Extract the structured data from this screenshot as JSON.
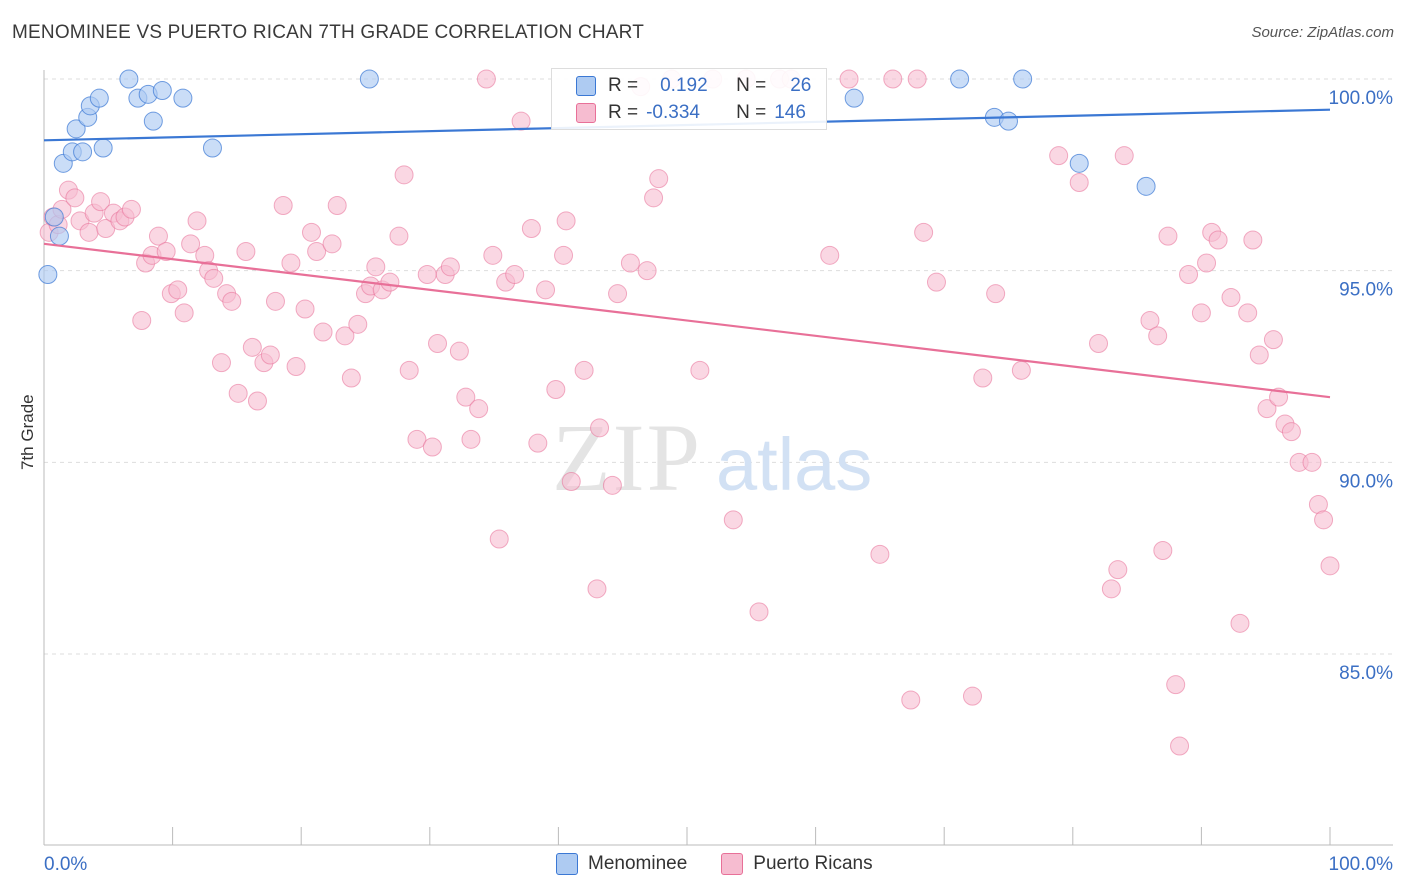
{
  "title": "MENOMINEE VS PUERTO RICAN 7TH GRADE CORRELATION CHART",
  "source": "Source: ZipAtlas.com",
  "watermark": {
    "zip": "ZIP",
    "atlas": "atlas"
  },
  "legend_top": {
    "row1": {
      "r_label": "R =",
      "r_value": "0.192",
      "n_label": "N =",
      "n_value": "26"
    },
    "row2": {
      "r_label": "R =",
      "r_value": "-0.334",
      "n_label": "N =",
      "n_value": "146"
    }
  },
  "colors": {
    "blue": "#3b78d4",
    "blue_fill": "#aecbf2",
    "pink": "#e87098",
    "pink_fill": "#f6bcd0",
    "axis_text": "#3b6fc4"
  },
  "chart_data": {
    "type": "scatter",
    "title": "MENOMINEE VS PUERTO RICAN 7TH GRADE CORRELATION CHART",
    "xlabel": "",
    "ylabel": "7th Grade",
    "xlim": [
      0,
      100
    ],
    "ylim": [
      80.5,
      100.8
    ],
    "x_tick_labels": [
      "0.0%",
      "100.0%"
    ],
    "y_ticks": [
      85,
      90,
      95,
      100
    ],
    "y_tick_labels": [
      "85.0%",
      "90.0%",
      "95.0%",
      "100.0%"
    ],
    "grid": true,
    "legend": "bottom-center",
    "series": [
      {
        "name": "Menominee",
        "color": "#3b78d4",
        "trend": {
          "x": [
            0,
            100
          ],
          "y": [
            98.4,
            99.2
          ]
        },
        "points": [
          {
            "x": 0.3,
            "y": 94.9
          },
          {
            "x": 0.8,
            "y": 96.4
          },
          {
            "x": 1.2,
            "y": 95.9
          },
          {
            "x": 1.5,
            "y": 97.8
          },
          {
            "x": 2.2,
            "y": 98.1
          },
          {
            "x": 2.5,
            "y": 98.7
          },
          {
            "x": 3.0,
            "y": 98.1
          },
          {
            "x": 3.4,
            "y": 99.0
          },
          {
            "x": 3.6,
            "y": 99.3
          },
          {
            "x": 4.3,
            "y": 99.5
          },
          {
            "x": 4.6,
            "y": 98.2
          },
          {
            "x": 6.6,
            "y": 100.0
          },
          {
            "x": 7.3,
            "y": 99.5
          },
          {
            "x": 8.1,
            "y": 99.6
          },
          {
            "x": 8.5,
            "y": 98.9
          },
          {
            "x": 9.2,
            "y": 99.7
          },
          {
            "x": 10.8,
            "y": 99.5
          },
          {
            "x": 13.1,
            "y": 98.2
          },
          {
            "x": 25.3,
            "y": 100.0
          },
          {
            "x": 63.0,
            "y": 99.5
          },
          {
            "x": 71.2,
            "y": 100.0
          },
          {
            "x": 73.9,
            "y": 99.0
          },
          {
            "x": 75.0,
            "y": 98.9
          },
          {
            "x": 76.1,
            "y": 100.0
          },
          {
            "x": 80.5,
            "y": 97.8
          },
          {
            "x": 85.7,
            "y": 97.2
          }
        ]
      },
      {
        "name": "Puerto Ricans",
        "color": "#e87098",
        "trend": {
          "x": [
            0,
            100
          ],
          "y": [
            95.7,
            91.7
          ]
        },
        "points": [
          {
            "x": 0.4,
            "y": 96.0
          },
          {
            "x": 0.7,
            "y": 96.4
          },
          {
            "x": 1.1,
            "y": 96.2
          },
          {
            "x": 1.4,
            "y": 96.6
          },
          {
            "x": 1.9,
            "y": 97.1
          },
          {
            "x": 2.4,
            "y": 96.9
          },
          {
            "x": 2.8,
            "y": 96.3
          },
          {
            "x": 3.5,
            "y": 96.0
          },
          {
            "x": 3.9,
            "y": 96.5
          },
          {
            "x": 4.4,
            "y": 96.8
          },
          {
            "x": 4.8,
            "y": 96.1
          },
          {
            "x": 5.4,
            "y": 96.5
          },
          {
            "x": 5.9,
            "y": 96.3
          },
          {
            "x": 6.3,
            "y": 96.4
          },
          {
            "x": 6.8,
            "y": 96.6
          },
          {
            "x": 7.6,
            "y": 93.7
          },
          {
            "x": 7.9,
            "y": 95.2
          },
          {
            "x": 8.4,
            "y": 95.4
          },
          {
            "x": 8.9,
            "y": 95.9
          },
          {
            "x": 9.5,
            "y": 95.5
          },
          {
            "x": 9.9,
            "y": 94.4
          },
          {
            "x": 10.4,
            "y": 94.5
          },
          {
            "x": 10.9,
            "y": 93.9
          },
          {
            "x": 11.4,
            "y": 95.7
          },
          {
            "x": 11.9,
            "y": 96.3
          },
          {
            "x": 12.5,
            "y": 95.4
          },
          {
            "x": 12.8,
            "y": 95.0
          },
          {
            "x": 13.2,
            "y": 94.8
          },
          {
            "x": 13.8,
            "y": 92.6
          },
          {
            "x": 14.2,
            "y": 94.4
          },
          {
            "x": 14.6,
            "y": 94.2
          },
          {
            "x": 15.1,
            "y": 91.8
          },
          {
            "x": 15.7,
            "y": 95.5
          },
          {
            "x": 16.2,
            "y": 93.0
          },
          {
            "x": 16.6,
            "y": 91.6
          },
          {
            "x": 17.1,
            "y": 92.6
          },
          {
            "x": 17.6,
            "y": 92.8
          },
          {
            "x": 18.0,
            "y": 94.2
          },
          {
            "x": 18.6,
            "y": 96.7
          },
          {
            "x": 19.2,
            "y": 95.2
          },
          {
            "x": 19.6,
            "y": 92.5
          },
          {
            "x": 20.3,
            "y": 94.0
          },
          {
            "x": 20.8,
            "y": 96.0
          },
          {
            "x": 21.2,
            "y": 95.5
          },
          {
            "x": 21.7,
            "y": 93.4
          },
          {
            "x": 22.4,
            "y": 95.7
          },
          {
            "x": 22.8,
            "y": 96.7
          },
          {
            "x": 23.4,
            "y": 93.3
          },
          {
            "x": 23.9,
            "y": 92.2
          },
          {
            "x": 24.4,
            "y": 93.6
          },
          {
            "x": 25.0,
            "y": 94.4
          },
          {
            "x": 25.4,
            "y": 94.6
          },
          {
            "x": 25.8,
            "y": 95.1
          },
          {
            "x": 26.3,
            "y": 94.5
          },
          {
            "x": 26.9,
            "y": 94.7
          },
          {
            "x": 27.6,
            "y": 95.9
          },
          {
            "x": 28.0,
            "y": 97.5
          },
          {
            "x": 28.4,
            "y": 92.4
          },
          {
            "x": 29.0,
            "y": 90.6
          },
          {
            "x": 29.8,
            "y": 94.9
          },
          {
            "x": 30.2,
            "y": 90.4
          },
          {
            "x": 30.6,
            "y": 93.1
          },
          {
            "x": 31.2,
            "y": 94.9
          },
          {
            "x": 31.6,
            "y": 95.1
          },
          {
            "x": 32.3,
            "y": 92.9
          },
          {
            "x": 32.8,
            "y": 91.7
          },
          {
            "x": 33.2,
            "y": 90.6
          },
          {
            "x": 33.8,
            "y": 91.4
          },
          {
            "x": 34.4,
            "y": 100.0
          },
          {
            "x": 34.9,
            "y": 95.4
          },
          {
            "x": 35.4,
            "y": 88.0
          },
          {
            "x": 35.9,
            "y": 94.7
          },
          {
            "x": 36.6,
            "y": 94.9
          },
          {
            "x": 37.1,
            "y": 98.9
          },
          {
            "x": 37.9,
            "y": 96.1
          },
          {
            "x": 38.4,
            "y": 90.5
          },
          {
            "x": 39.0,
            "y": 94.5
          },
          {
            "x": 39.8,
            "y": 91.9
          },
          {
            "x": 40.4,
            "y": 95.4
          },
          {
            "x": 40.6,
            "y": 96.3
          },
          {
            "x": 41.0,
            "y": 89.5
          },
          {
            "x": 42.0,
            "y": 92.4
          },
          {
            "x": 43.0,
            "y": 86.7
          },
          {
            "x": 43.2,
            "y": 90.9
          },
          {
            "x": 44.2,
            "y": 89.4
          },
          {
            "x": 44.6,
            "y": 94.4
          },
          {
            "x": 45.6,
            "y": 95.2
          },
          {
            "x": 46.4,
            "y": 99.8
          },
          {
            "x": 46.9,
            "y": 95.0
          },
          {
            "x": 47.4,
            "y": 96.9
          },
          {
            "x": 47.8,
            "y": 97.4
          },
          {
            "x": 48.8,
            "y": 100.0
          },
          {
            "x": 51.0,
            "y": 92.4
          },
          {
            "x": 52.0,
            "y": 100.0
          },
          {
            "x": 53.6,
            "y": 88.5
          },
          {
            "x": 54.6,
            "y": 100.0
          },
          {
            "x": 55.6,
            "y": 86.1
          },
          {
            "x": 57.2,
            "y": 100.0
          },
          {
            "x": 58.1,
            "y": 100.0
          },
          {
            "x": 61.1,
            "y": 95.4
          },
          {
            "x": 62.6,
            "y": 100.0
          },
          {
            "x": 65.0,
            "y": 87.6
          },
          {
            "x": 66.0,
            "y": 100.0
          },
          {
            "x": 67.4,
            "y": 83.8
          },
          {
            "x": 67.9,
            "y": 100.0
          },
          {
            "x": 68.4,
            "y": 96.0
          },
          {
            "x": 69.4,
            "y": 94.7
          },
          {
            "x": 72.2,
            "y": 83.9
          },
          {
            "x": 73.0,
            "y": 92.2
          },
          {
            "x": 74.0,
            "y": 94.4
          },
          {
            "x": 76.0,
            "y": 92.4
          },
          {
            "x": 78.9,
            "y": 98.0
          },
          {
            "x": 80.5,
            "y": 97.3
          },
          {
            "x": 82.0,
            "y": 93.1
          },
          {
            "x": 83.0,
            "y": 86.7
          },
          {
            "x": 83.5,
            "y": 87.2
          },
          {
            "x": 84.0,
            "y": 98.0
          },
          {
            "x": 86.0,
            "y": 93.7
          },
          {
            "x": 86.6,
            "y": 93.3
          },
          {
            "x": 87.0,
            "y": 87.7
          },
          {
            "x": 87.4,
            "y": 95.9
          },
          {
            "x": 88.0,
            "y": 84.2
          },
          {
            "x": 88.3,
            "y": 82.6
          },
          {
            "x": 89.0,
            "y": 94.9
          },
          {
            "x": 90.0,
            "y": 93.9
          },
          {
            "x": 90.4,
            "y": 95.2
          },
          {
            "x": 90.8,
            "y": 96.0
          },
          {
            "x": 91.3,
            "y": 95.8
          },
          {
            "x": 92.3,
            "y": 94.3
          },
          {
            "x": 93.0,
            "y": 85.8
          },
          {
            "x": 93.6,
            "y": 93.9
          },
          {
            "x": 94.0,
            "y": 95.8
          },
          {
            "x": 94.5,
            "y": 92.8
          },
          {
            "x": 95.1,
            "y": 91.4
          },
          {
            "x": 95.6,
            "y": 93.2
          },
          {
            "x": 96.0,
            "y": 91.7
          },
          {
            "x": 96.5,
            "y": 91.0
          },
          {
            "x": 97.0,
            "y": 90.8
          },
          {
            "x": 97.6,
            "y": 90.0
          },
          {
            "x": 98.6,
            "y": 90.0
          },
          {
            "x": 99.1,
            "y": 88.9
          },
          {
            "x": 99.5,
            "y": 88.5
          },
          {
            "x": 100.0,
            "y": 87.3
          }
        ]
      }
    ]
  },
  "legend_bottom": {
    "item1": "Menominee",
    "item2": "Puerto Ricans"
  }
}
